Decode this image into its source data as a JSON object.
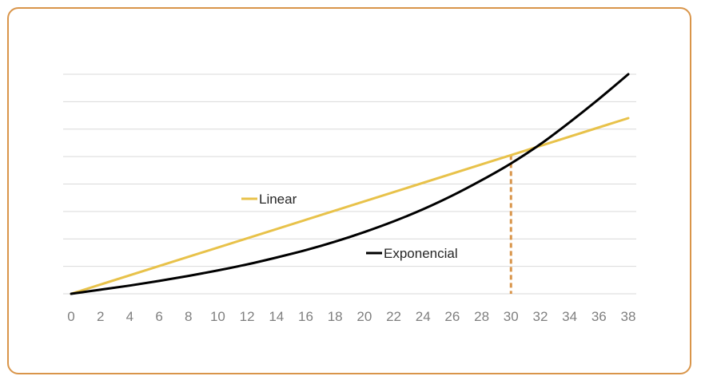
{
  "chart_data": {
    "type": "line",
    "title": "",
    "xlabel": "",
    "ylabel": "",
    "x_ticks": [
      "0",
      "2",
      "4",
      "6",
      "8",
      "10",
      "12",
      "14",
      "16",
      "18",
      "20",
      "22",
      "24",
      "26",
      "28",
      "30",
      "32",
      "34",
      "36",
      "38"
    ],
    "xlim": [
      0,
      38
    ],
    "ylim": [
      0,
      8
    ],
    "y_tick_labels_shown": false,
    "grid": "horizontal",
    "series": [
      {
        "name": "Linear",
        "color": "#e8c24a",
        "x": [
          0,
          38
        ],
        "y": [
          0,
          6.4
        ]
      },
      {
        "name": "Exponencial",
        "color": "#000000",
        "x": [
          0,
          2,
          4,
          6,
          8,
          10,
          12,
          14,
          16,
          18,
          20,
          22,
          24,
          26,
          28,
          30,
          32,
          34,
          36,
          38
        ],
        "y": [
          0,
          0.15,
          0.3,
          0.47,
          0.65,
          0.85,
          1.07,
          1.32,
          1.59,
          1.9,
          2.25,
          2.64,
          3.08,
          3.58,
          4.14,
          4.75,
          5.45,
          6.25,
          7.1,
          8.0
        ]
      }
    ],
    "annotations": [
      {
        "type": "vertical-dashed-line",
        "x": 30,
        "color": "#d9954a"
      }
    ],
    "legend": "inline-labels"
  }
}
